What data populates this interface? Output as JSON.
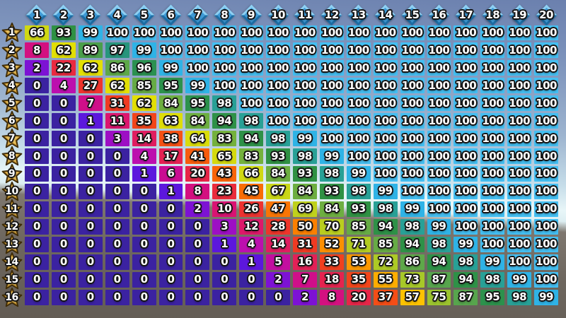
{
  "chart_data": {
    "type": "heatmap",
    "title": "",
    "column_icon": "diamond-icon",
    "row_icon": "star-icon",
    "columns": [
      "1",
      "2",
      "3",
      "4",
      "5",
      "6",
      "7",
      "8",
      "9",
      "10",
      "11",
      "12",
      "13",
      "14",
      "15",
      "16",
      "17",
      "18",
      "19",
      "20"
    ],
    "row_labels": [
      "1",
      "2",
      "3",
      "4",
      "5",
      "6",
      "7",
      "8",
      "9",
      "10",
      "11",
      "12",
      "13",
      "14",
      "15",
      "16"
    ],
    "value_range": [
      0,
      100
    ],
    "values": [
      [
        66,
        93,
        99,
        100,
        100,
        100,
        100,
        100,
        100,
        100,
        100,
        100,
        100,
        100,
        100,
        100,
        100,
        100,
        100,
        100
      ],
      [
        8,
        62,
        89,
        97,
        99,
        100,
        100,
        100,
        100,
        100,
        100,
        100,
        100,
        100,
        100,
        100,
        100,
        100,
        100,
        100
      ],
      [
        2,
        22,
        62,
        86,
        96,
        99,
        100,
        100,
        100,
        100,
        100,
        100,
        100,
        100,
        100,
        100,
        100,
        100,
        100,
        100
      ],
      [
        0,
        4,
        27,
        62,
        85,
        95,
        99,
        100,
        100,
        100,
        100,
        100,
        100,
        100,
        100,
        100,
        100,
        100,
        100,
        100
      ],
      [
        0,
        0,
        7,
        31,
        62,
        84,
        95,
        98,
        100,
        100,
        100,
        100,
        100,
        100,
        100,
        100,
        100,
        100,
        100,
        100
      ],
      [
        0,
        0,
        1,
        11,
        35,
        63,
        84,
        94,
        98,
        100,
        100,
        100,
        100,
        100,
        100,
        100,
        100,
        100,
        100,
        100
      ],
      [
        0,
        0,
        0,
        3,
        14,
        38,
        64,
        83,
        94,
        98,
        99,
        100,
        100,
        100,
        100,
        100,
        100,
        100,
        100,
        100
      ],
      [
        0,
        0,
        0,
        0,
        4,
        17,
        41,
        65,
        83,
        93,
        98,
        99,
        100,
        100,
        100,
        100,
        100,
        100,
        100,
        100
      ],
      [
        0,
        0,
        0,
        0,
        1,
        6,
        20,
        43,
        66,
        84,
        93,
        98,
        99,
        100,
        100,
        100,
        100,
        100,
        100,
        100
      ],
      [
        0,
        0,
        0,
        0,
        0,
        1,
        8,
        23,
        45,
        67,
        84,
        93,
        98,
        99,
        100,
        100,
        100,
        100,
        100,
        100
      ],
      [
        0,
        0,
        0,
        0,
        0,
        0,
        2,
        10,
        26,
        47,
        69,
        84,
        93,
        98,
        99,
        100,
        100,
        100,
        100,
        100
      ],
      [
        0,
        0,
        0,
        0,
        0,
        0,
        0,
        3,
        12,
        28,
        50,
        70,
        85,
        94,
        98,
        99,
        100,
        100,
        100,
        100
      ],
      [
        0,
        0,
        0,
        0,
        0,
        0,
        0,
        1,
        4,
        14,
        31,
        52,
        71,
        85,
        94,
        98,
        99,
        100,
        100,
        100
      ],
      [
        0,
        0,
        0,
        0,
        0,
        0,
        0,
        0,
        1,
        5,
        16,
        33,
        53,
        72,
        86,
        94,
        98,
        99,
        100,
        100
      ],
      [
        0,
        0,
        0,
        0,
        0,
        0,
        0,
        0,
        0,
        2,
        7,
        18,
        35,
        55,
        73,
        87,
        94,
        98,
        99,
        100
      ],
      [
        0,
        0,
        0,
        0,
        0,
        0,
        0,
        0,
        0,
        0,
        2,
        8,
        20,
        37,
        57,
        75,
        87,
        95,
        98,
        99
      ]
    ],
    "colormap_stops": [
      [
        0,
        "#3b22a1"
      ],
      [
        1,
        "#5c17dd"
      ],
      [
        2,
        "#7d12d4"
      ],
      [
        3,
        "#9d0fc4"
      ],
      [
        4,
        "#bc0fae"
      ],
      [
        6,
        "#ca0d92"
      ],
      [
        8,
        "#d31080"
      ],
      [
        10,
        "#d91373"
      ],
      [
        14,
        "#e01d60"
      ],
      [
        17,
        "#e42253"
      ],
      [
        20,
        "#e72648"
      ],
      [
        26,
        "#ed3230"
      ],
      [
        31,
        "#f03a22"
      ],
      [
        35,
        "#f2451a"
      ],
      [
        41,
        "#f75c0d"
      ],
      [
        45,
        "#f96d06"
      ],
      [
        50,
        "#fb8000"
      ],
      [
        53,
        "#fc9800"
      ],
      [
        57,
        "#fdc200"
      ],
      [
        62,
        "#e2df04"
      ],
      [
        66,
        "#d0d813"
      ],
      [
        71,
        "#b3cc22"
      ],
      [
        75,
        "#9bc32e"
      ],
      [
        83,
        "#74b13c"
      ],
      [
        87,
        "#57a54d"
      ],
      [
        93,
        "#2f9143"
      ],
      [
        96,
        "#2b9150"
      ],
      [
        97,
        "#27957c"
      ],
      [
        98,
        "#28a096"
      ],
      [
        99,
        "#2fb3e6"
      ],
      [
        100,
        "#44bff2"
      ]
    ],
    "header_colors": {
      "diamond_fill": "#3e9ad6",
      "diamond_light_edge": "#8fd0f2",
      "diamond_dark_edge": "#1d6ca3",
      "star_fill": "#c9952f",
      "star_highlight": "#f0cf6e",
      "star_outline": "#3f2c08"
    },
    "background_colors": {
      "sky_top": "#6b80ae",
      "sky_horizon": "#e8f6f8",
      "ground": "#6e675f",
      "ground_bottom": "#635c54"
    }
  }
}
